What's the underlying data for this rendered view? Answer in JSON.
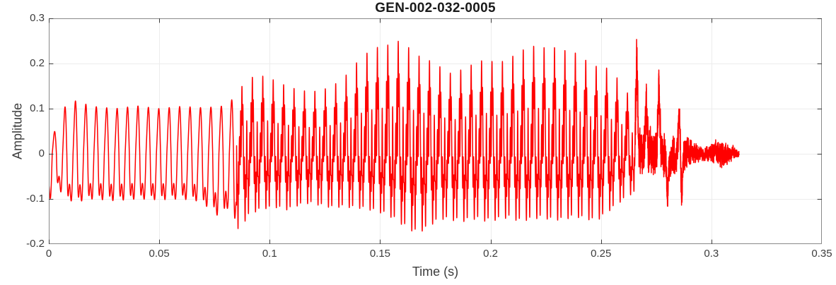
{
  "chart_data": {
    "type": "line",
    "title": "GEN-002-032-0005",
    "xlabel": "Time (s)",
    "ylabel": "Amplitude",
    "xlim": [
      0,
      0.35
    ],
    "ylim": [
      -0.2,
      0.3
    ],
    "xticks": [
      0,
      0.05,
      0.1,
      0.15,
      0.2,
      0.25,
      0.3,
      0.35
    ],
    "xtick_labels": [
      "0",
      "0.05",
      "0.1",
      "0.15",
      "0.2",
      "0.25",
      "0.3",
      "0.35"
    ],
    "yticks": [
      0.3,
      0.2,
      0.1,
      0,
      -0.1,
      -0.2
    ],
    "ytick_labels": [
      "0.3",
      "0.2",
      "0.1",
      "0",
      "-0.1",
      "-0.2"
    ],
    "grid": true,
    "legend": "none",
    "colors": {
      "line": "#ff0000",
      "grid": "#ececec",
      "box": "#898989",
      "tick": "#3c3c3c",
      "text": "#3c3c3c",
      "title": "#1a1a1a",
      "background": "#ffffff"
    },
    "signal": {
      "duration_s": 0.3125,
      "f0_hz": 212,
      "segments": [
        {
          "start": 0.0,
          "end": 0.085,
          "type": "voiced",
          "harmonics": [
            [
              1,
              1,
              -1.8
            ],
            [
              2,
              0.4,
              1.1
            ],
            [
              3,
              0.12,
              2.3
            ]
          ]
        },
        {
          "start": 0.085,
          "end": 0.2655,
          "type": "voiced",
          "harmonics": [
            [
              1,
              1,
              -1.6
            ],
            [
              2,
              0.62,
              1.2
            ],
            [
              3,
              0.42,
              2.1
            ],
            [
              4,
              0.3,
              0.6
            ],
            [
              5,
              0.18,
              1.8
            ],
            [
              8,
              0.35,
              0.3
            ],
            [
              9,
              0.42,
              2.4
            ],
            [
              10,
              0.3,
              1.0
            ],
            [
              14,
              0.14,
              2.8
            ],
            [
              15,
              0.1,
              0.5
            ]
          ]
        },
        {
          "start": 0.2655,
          "end": 0.3125,
          "type": "noise"
        }
      ],
      "envelope_pos": [
        [
          0.0,
          0.045
        ],
        [
          0.003,
          0.05
        ],
        [
          0.006,
          0.1
        ],
        [
          0.012,
          0.117
        ],
        [
          0.02,
          0.105
        ],
        [
          0.03,
          0.1
        ],
        [
          0.04,
          0.106
        ],
        [
          0.05,
          0.1
        ],
        [
          0.06,
          0.105
        ],
        [
          0.07,
          0.102
        ],
        [
          0.078,
          0.105
        ],
        [
          0.083,
          0.12
        ],
        [
          0.0865,
          0.14
        ],
        [
          0.09,
          0.175
        ],
        [
          0.094,
          0.165
        ],
        [
          0.098,
          0.175
        ],
        [
          0.103,
          0.16
        ],
        [
          0.108,
          0.15
        ],
        [
          0.113,
          0.142
        ],
        [
          0.118,
          0.138
        ],
        [
          0.123,
          0.14
        ],
        [
          0.128,
          0.15
        ],
        [
          0.133,
          0.165
        ],
        [
          0.138,
          0.195
        ],
        [
          0.143,
          0.22
        ],
        [
          0.148,
          0.235
        ],
        [
          0.153,
          0.24
        ],
        [
          0.158,
          0.25
        ],
        [
          0.163,
          0.235
        ],
        [
          0.168,
          0.215
        ],
        [
          0.173,
          0.205
        ],
        [
          0.178,
          0.19
        ],
        [
          0.183,
          0.175
        ],
        [
          0.188,
          0.19
        ],
        [
          0.193,
          0.2
        ],
        [
          0.198,
          0.21
        ],
        [
          0.203,
          0.2
        ],
        [
          0.208,
          0.21
        ],
        [
          0.213,
          0.225
        ],
        [
          0.218,
          0.24
        ],
        [
          0.223,
          0.235
        ],
        [
          0.228,
          0.237
        ],
        [
          0.233,
          0.23
        ],
        [
          0.238,
          0.225
        ],
        [
          0.242,
          0.215
        ],
        [
          0.246,
          0.19
        ],
        [
          0.25,
          0.2
        ],
        [
          0.254,
          0.185
        ],
        [
          0.258,
          0.165
        ],
        [
          0.262,
          0.135
        ],
        [
          0.2655,
          0.095
        ],
        [
          0.267,
          0.075
        ],
        [
          0.272,
          0.07
        ],
        [
          0.277,
          0.065
        ],
        [
          0.282,
          0.06
        ],
        [
          0.287,
          0.05
        ],
        [
          0.291,
          0.035
        ],
        [
          0.2955,
          0.02
        ],
        [
          0.299,
          0.025
        ],
        [
          0.303,
          0.04
        ],
        [
          0.307,
          0.03
        ],
        [
          0.31,
          0.02
        ],
        [
          0.3125,
          0.008
        ]
      ],
      "envelope_neg": [
        [
          0.0,
          0.105
        ],
        [
          0.004,
          0.07
        ],
        [
          0.007,
          0.1
        ],
        [
          0.012,
          0.107
        ],
        [
          0.02,
          0.1
        ],
        [
          0.03,
          0.104
        ],
        [
          0.04,
          0.1
        ],
        [
          0.05,
          0.102
        ],
        [
          0.06,
          0.1
        ],
        [
          0.068,
          0.105
        ],
        [
          0.074,
          0.125
        ],
        [
          0.078,
          0.145
        ],
        [
          0.081,
          0.12
        ],
        [
          0.0858,
          0.175
        ],
        [
          0.09,
          0.14
        ],
        [
          0.094,
          0.128
        ],
        [
          0.098,
          0.122
        ],
        [
          0.103,
          0.12
        ],
        [
          0.108,
          0.125
        ],
        [
          0.113,
          0.115
        ],
        [
          0.118,
          0.11
        ],
        [
          0.123,
          0.115
        ],
        [
          0.128,
          0.12
        ],
        [
          0.133,
          0.118
        ],
        [
          0.138,
          0.12
        ],
        [
          0.143,
          0.122
        ],
        [
          0.148,
          0.128
        ],
        [
          0.153,
          0.135
        ],
        [
          0.158,
          0.15
        ],
        [
          0.162,
          0.165
        ],
        [
          0.166,
          0.175
        ],
        [
          0.17,
          0.17
        ],
        [
          0.174,
          0.155
        ],
        [
          0.178,
          0.145
        ],
        [
          0.183,
          0.148
        ],
        [
          0.188,
          0.15
        ],
        [
          0.193,
          0.145
        ],
        [
          0.198,
          0.15
        ],
        [
          0.203,
          0.147
        ],
        [
          0.208,
          0.142
        ],
        [
          0.213,
          0.15
        ],
        [
          0.218,
          0.147
        ],
        [
          0.223,
          0.142
        ],
        [
          0.228,
          0.148
        ],
        [
          0.233,
          0.147
        ],
        [
          0.238,
          0.14
        ],
        [
          0.243,
          0.145
        ],
        [
          0.248,
          0.15
        ],
        [
          0.253,
          0.13
        ],
        [
          0.258,
          0.11
        ],
        [
          0.262,
          0.095
        ],
        [
          0.2655,
          0.085
        ],
        [
          0.267,
          0.075
        ],
        [
          0.272,
          0.07
        ],
        [
          0.277,
          0.065
        ],
        [
          0.282,
          0.06
        ],
        [
          0.287,
          0.05
        ],
        [
          0.291,
          0.035
        ],
        [
          0.2955,
          0.02
        ],
        [
          0.299,
          0.025
        ],
        [
          0.303,
          0.04
        ],
        [
          0.307,
          0.03
        ],
        [
          0.31,
          0.02
        ],
        [
          0.3125,
          0.008
        ]
      ],
      "tail_spikes": [
        [
          0.2662,
          0.2
        ],
        [
          0.2705,
          0.12
        ],
        [
          0.2762,
          0.155
        ],
        [
          0.2802,
          -0.1
        ],
        [
          0.2856,
          0.125
        ],
        [
          0.2864,
          -0.105
        ]
      ],
      "spike_width_s": 0.001
    }
  }
}
